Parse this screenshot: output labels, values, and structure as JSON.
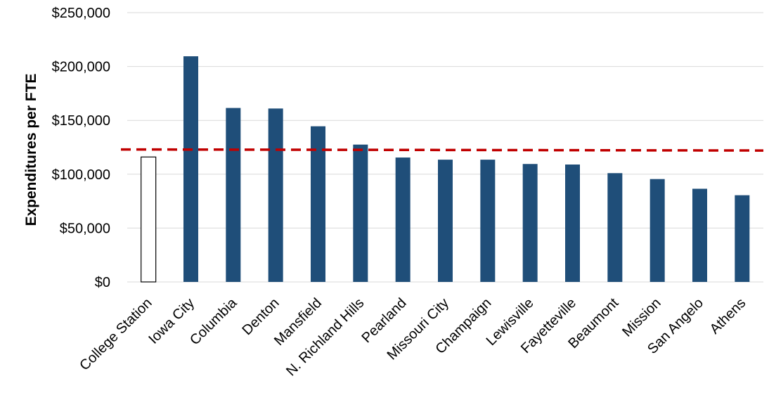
{
  "chart_data": {
    "type": "bar",
    "title": "",
    "xlabel": "",
    "ylabel": "Expenditures per FTE",
    "ylim": [
      0,
      250000
    ],
    "yticks": [
      0,
      50000,
      100000,
      150000,
      200000,
      250000
    ],
    "ytick_labels": [
      "$0",
      "$50,000",
      "$100,000",
      "$150,000",
      "$200,000",
      "$250,000"
    ],
    "grid": true,
    "legend": "none",
    "categories": [
      "College Station",
      "Iowa City",
      "Columbia",
      "Denton",
      "Mansfield",
      "N. Richland Hills",
      "Pearland",
      "Missouri City",
      "Champaign",
      "Lewisville",
      "Fayetteville",
      "Beaumont",
      "Mission",
      "San Angelo",
      "Athens"
    ],
    "values": [
      116000,
      209500,
      161500,
      161000,
      144500,
      127500,
      115500,
      113500,
      113500,
      109500,
      109000,
      101000,
      95500,
      86500,
      80500
    ],
    "highlight_index": 0,
    "reference_line": {
      "value": 123000,
      "value_end": 122000,
      "style": "dashed"
    },
    "colors": {
      "bar": "#1f4e79",
      "highlight_fill": "#ffffff",
      "highlight_stroke": "#000000",
      "reference_line": "#c00000",
      "grid": "#d9d9d9"
    }
  }
}
